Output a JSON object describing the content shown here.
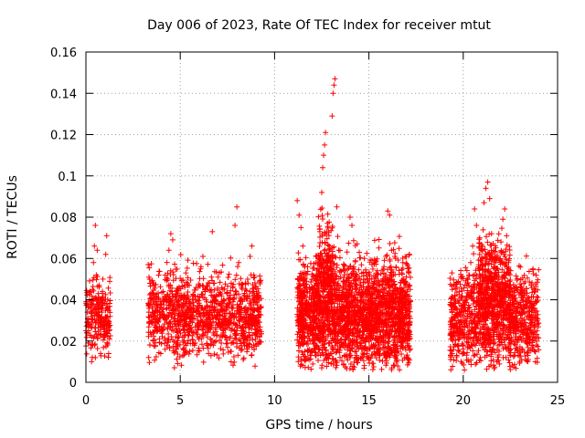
{
  "chart_data": {
    "type": "scatter",
    "title": "Day 006 of 2023, Rate Of TEC Index for receiver mtut",
    "xlabel": "GPS time / hours",
    "ylabel": "ROTI / TECUs",
    "xlim": [
      0,
      25
    ],
    "ylim": [
      0,
      0.16
    ],
    "xticks": [
      0,
      5,
      10,
      15,
      20,
      25
    ],
    "xtick_labels": [
      "0",
      "5",
      "10",
      "15",
      "20",
      "25"
    ],
    "yticks": [
      0,
      0.02,
      0.04,
      0.06,
      0.08,
      0.1,
      0.12,
      0.14,
      0.16
    ],
    "ytick_labels": [
      "0",
      "0.02",
      "0.04",
      "0.06",
      "0.08",
      "0.1",
      "0.12",
      "0.14",
      "0.16"
    ],
    "grid": true,
    "marker": "+",
    "color": "#ff0000",
    "series": [
      {
        "points": [
          [
            0.05,
            0.024
          ],
          [
            0.1,
            0.031
          ],
          [
            0.15,
            0.019
          ],
          [
            0.2,
            0.028
          ],
          [
            0.25,
            0.036
          ],
          [
            0.3,
            0.022
          ],
          [
            0.35,
            0.045
          ],
          [
            0.4,
            0.058
          ],
          [
            0.45,
            0.066
          ],
          [
            0.5,
            0.076
          ],
          [
            0.5,
            0.012
          ],
          [
            0.55,
            0.052
          ],
          [
            0.6,
            0.038
          ],
          [
            0.65,
            0.043
          ],
          [
            0.7,
            0.047
          ],
          [
            0.75,
            0.031
          ],
          [
            0.8,
            0.029
          ],
          [
            0.85,
            0.034
          ],
          [
            0.9,
            0.041
          ],
          [
            0.95,
            0.026
          ],
          [
            1.0,
            0.022
          ],
          [
            1.05,
            0.062
          ],
          [
            1.1,
            0.071
          ],
          [
            1.15,
            0.032
          ],
          [
            1.2,
            0.027
          ],
          [
            1.25,
            0.021
          ],
          [
            0.3,
            0.01
          ],
          [
            0.6,
            0.064
          ],
          [
            0.9,
            0.05
          ],
          [
            3.3,
            0.057
          ],
          [
            3.4,
            0.048
          ],
          [
            3.5,
            0.041
          ],
          [
            3.6,
            0.034
          ],
          [
            3.7,
            0.029
          ],
          [
            3.8,
            0.025
          ],
          [
            3.9,
            0.031
          ],
          [
            4.0,
            0.038
          ],
          [
            4.1,
            0.044
          ],
          [
            4.2,
            0.052
          ],
          [
            4.3,
            0.036
          ],
          [
            4.4,
            0.064
          ],
          [
            4.5,
            0.072
          ],
          [
            4.6,
            0.069
          ],
          [
            4.7,
            0.031
          ],
          [
            4.8,
            0.026
          ],
          [
            4.9,
            0.022
          ],
          [
            5.0,
            0.028
          ],
          [
            5.1,
            0.035
          ],
          [
            5.2,
            0.041
          ],
          [
            5.3,
            0.053
          ],
          [
            5.4,
            0.047
          ],
          [
            5.5,
            0.038
          ],
          [
            5.6,
            0.031
          ],
          [
            5.7,
            0.024
          ],
          [
            5.8,
            0.019
          ],
          [
            5.9,
            0.027
          ],
          [
            6.0,
            0.033
          ],
          [
            6.1,
            0.056
          ],
          [
            6.2,
            0.061
          ],
          [
            6.3,
            0.045
          ],
          [
            6.4,
            0.039
          ],
          [
            6.5,
            0.028
          ],
          [
            6.6,
            0.021
          ],
          [
            6.7,
            0.073
          ],
          [
            6.8,
            0.034
          ],
          [
            6.9,
            0.042
          ],
          [
            7.0,
            0.051
          ],
          [
            7.1,
            0.038
          ],
          [
            7.2,
            0.029
          ],
          [
            7.3,
            0.024
          ],
          [
            7.4,
            0.031
          ],
          [
            7.5,
            0.036
          ],
          [
            7.6,
            0.041
          ],
          [
            7.7,
            0.048
          ],
          [
            7.8,
            0.039
          ],
          [
            7.9,
            0.076
          ],
          [
            8.0,
            0.085
          ],
          [
            8.1,
            0.058
          ],
          [
            8.2,
            0.034
          ],
          [
            8.3,
            0.027
          ],
          [
            8.4,
            0.021
          ],
          [
            8.5,
            0.018
          ],
          [
            8.6,
            0.028
          ],
          [
            8.7,
            0.061
          ],
          [
            8.8,
            0.066
          ],
          [
            8.9,
            0.052
          ],
          [
            9.0,
            0.031
          ],
          [
            9.1,
            0.025
          ],
          [
            9.2,
            0.022
          ],
          [
            4.2,
            0.016
          ],
          [
            5.5,
            0.015
          ],
          [
            6.5,
            0.014
          ],
          [
            7.5,
            0.019
          ],
          [
            8.8,
            0.017
          ],
          [
            11.2,
            0.088
          ],
          [
            11.3,
            0.081
          ],
          [
            11.4,
            0.075
          ],
          [
            11.5,
            0.066
          ],
          [
            11.6,
            0.056
          ],
          [
            11.7,
            0.046
          ],
          [
            11.8,
            0.038
          ],
          [
            11.9,
            0.031
          ],
          [
            12.0,
            0.024
          ],
          [
            12.1,
            0.019
          ],
          [
            12.2,
            0.061
          ],
          [
            12.3,
            0.055
          ],
          [
            12.4,
            0.073
          ],
          [
            12.5,
            0.092
          ],
          [
            12.55,
            0.104
          ],
          [
            12.6,
            0.11
          ],
          [
            12.65,
            0.115
          ],
          [
            12.7,
            0.121
          ],
          [
            12.8,
            0.077
          ],
          [
            12.9,
            0.066
          ],
          [
            13.0,
            0.058
          ],
          [
            13.05,
            0.129
          ],
          [
            13.1,
            0.14
          ],
          [
            13.15,
            0.144
          ],
          [
            13.2,
            0.147
          ],
          [
            13.3,
            0.085
          ],
          [
            13.4,
            0.064
          ],
          [
            13.5,
            0.051
          ],
          [
            13.6,
            0.042
          ],
          [
            13.7,
            0.034
          ],
          [
            13.8,
            0.028
          ],
          [
            13.9,
            0.023
          ],
          [
            14.0,
            0.08
          ],
          [
            14.1,
            0.076
          ],
          [
            14.2,
            0.056
          ],
          [
            14.3,
            0.041
          ],
          [
            14.4,
            0.035
          ],
          [
            14.5,
            0.029
          ],
          [
            14.6,
            0.046
          ],
          [
            14.7,
            0.039
          ],
          [
            14.8,
            0.031
          ],
          [
            14.9,
            0.025
          ],
          [
            15.0,
            0.02
          ],
          [
            15.1,
            0.034
          ],
          [
            15.2,
            0.041
          ],
          [
            15.3,
            0.048
          ],
          [
            15.4,
            0.053
          ],
          [
            15.5,
            0.044
          ],
          [
            15.6,
            0.036
          ],
          [
            15.7,
            0.029
          ],
          [
            15.8,
            0.056
          ],
          [
            15.9,
            0.061
          ],
          [
            16.0,
            0.083
          ],
          [
            16.1,
            0.081
          ],
          [
            16.2,
            0.064
          ],
          [
            16.3,
            0.052
          ],
          [
            16.4,
            0.041
          ],
          [
            16.5,
            0.032
          ],
          [
            16.6,
            0.026
          ],
          [
            16.7,
            0.021
          ],
          [
            16.8,
            0.058
          ],
          [
            16.9,
            0.048
          ],
          [
            17.0,
            0.033
          ],
          [
            17.1,
            0.024
          ],
          [
            12.5,
            0.007
          ],
          [
            13.0,
            0.009
          ],
          [
            14.0,
            0.012
          ],
          [
            15.0,
            0.011
          ],
          [
            16.0,
            0.014
          ],
          [
            11.6,
            0.015
          ],
          [
            12.2,
            0.013
          ],
          [
            19.4,
            0.053
          ],
          [
            19.5,
            0.047
          ],
          [
            19.6,
            0.039
          ],
          [
            19.7,
            0.033
          ],
          [
            19.8,
            0.027
          ],
          [
            19.9,
            0.022
          ],
          [
            20.0,
            0.018
          ],
          [
            20.1,
            0.031
          ],
          [
            20.2,
            0.041
          ],
          [
            20.3,
            0.052
          ],
          [
            20.4,
            0.058
          ],
          [
            20.5,
            0.066
          ],
          [
            20.6,
            0.084
          ],
          [
            20.7,
            0.076
          ],
          [
            20.8,
            0.055
          ],
          [
            20.9,
            0.047
          ],
          [
            21.0,
            0.039
          ],
          [
            21.1,
            0.087
          ],
          [
            21.2,
            0.094
          ],
          [
            21.3,
            0.097
          ],
          [
            21.4,
            0.089
          ],
          [
            21.5,
            0.072
          ],
          [
            21.6,
            0.064
          ],
          [
            21.7,
            0.058
          ],
          [
            21.8,
            0.051
          ],
          [
            21.9,
            0.044
          ],
          [
            22.0,
            0.068
          ],
          [
            22.1,
            0.079
          ],
          [
            22.2,
            0.084
          ],
          [
            22.3,
            0.071
          ],
          [
            22.4,
            0.058
          ],
          [
            22.5,
            0.047
          ],
          [
            22.6,
            0.038
          ],
          [
            22.7,
            0.031
          ],
          [
            22.8,
            0.025
          ],
          [
            22.9,
            0.021
          ],
          [
            23.0,
            0.034
          ],
          [
            23.1,
            0.041
          ],
          [
            23.2,
            0.036
          ],
          [
            23.3,
            0.029
          ],
          [
            23.4,
            0.024
          ],
          [
            23.5,
            0.019
          ],
          [
            23.6,
            0.047
          ],
          [
            23.7,
            0.055
          ],
          [
            23.8,
            0.044
          ],
          [
            23.9,
            0.031
          ],
          [
            20.3,
            0.01
          ],
          [
            20.9,
            0.012
          ],
          [
            21.5,
            0.015
          ],
          [
            22.5,
            0.013
          ],
          [
            23.3,
            0.011
          ]
        ],
        "density": [
          {
            "x_range": [
              0.0,
              1.3
            ],
            "y_range": [
              0.017,
              0.046
            ],
            "count": 220
          },
          {
            "x_range": [
              3.3,
              9.3
            ],
            "y_range": [
              0.016,
              0.05
            ],
            "count": 1150
          },
          {
            "x_range": [
              11.2,
              17.2
            ],
            "y_range": [
              0.012,
              0.055
            ],
            "count": 2400
          },
          {
            "x_range": [
              19.3,
              24.0
            ],
            "y_range": [
              0.012,
              0.05
            ],
            "count": 1150
          },
          {
            "x_range": [
              20.8,
              22.5
            ],
            "y_range": [
              0.03,
              0.068
            ],
            "count": 350
          },
          {
            "x_range": [
              12.3,
              13.1
            ],
            "y_range": [
              0.04,
              0.078
            ],
            "count": 150
          }
        ]
      }
    ]
  }
}
